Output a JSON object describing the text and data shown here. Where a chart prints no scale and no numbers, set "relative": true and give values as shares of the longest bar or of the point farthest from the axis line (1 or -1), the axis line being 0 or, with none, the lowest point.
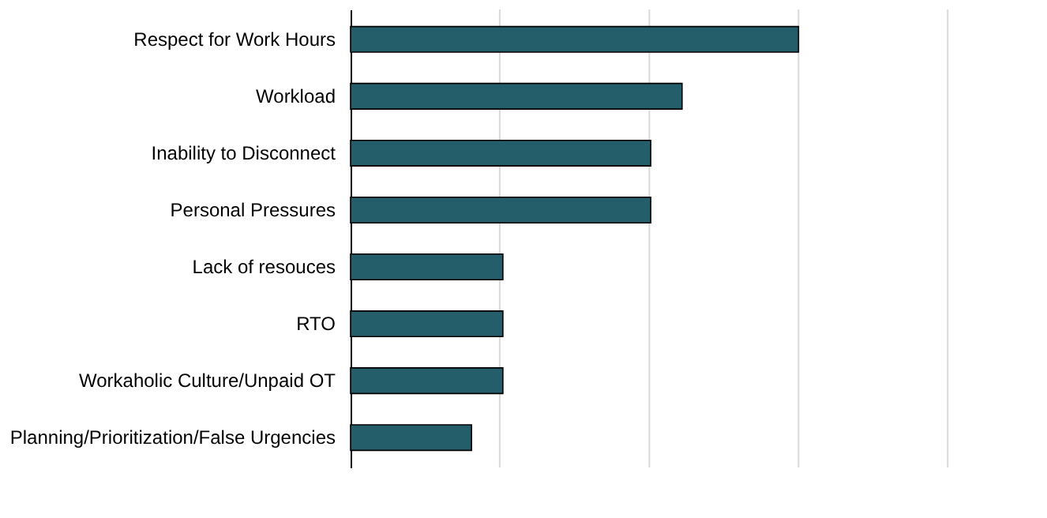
{
  "chart_data": {
    "type": "bar",
    "orientation": "horizontal",
    "relative": true,
    "categories": [
      "Respect for Work Hours",
      "Workload",
      "Inability to Disconnect",
      "Personal Pressures",
      "Lack of resouces",
      "RTO",
      "Workaholic Culture/Unpaid OT",
      "Planning/Prioritization/False Urgencies"
    ],
    "values": [
      1,
      0.74,
      0.67,
      0.67,
      0.34,
      0.34,
      0.34,
      0.27
    ],
    "color": "#255e6b",
    "ref_lines": [
      {
        "axis": "x",
        "value": 0.333,
        "color": "#d9d9d9"
      },
      {
        "axis": "x",
        "value": 0.667,
        "color": "#d9d9d9"
      },
      {
        "axis": "x",
        "value": 1,
        "color": "#d9d9d9"
      },
      {
        "axis": "x",
        "value": 1.333,
        "color": "#d9d9d9"
      }
    ]
  }
}
